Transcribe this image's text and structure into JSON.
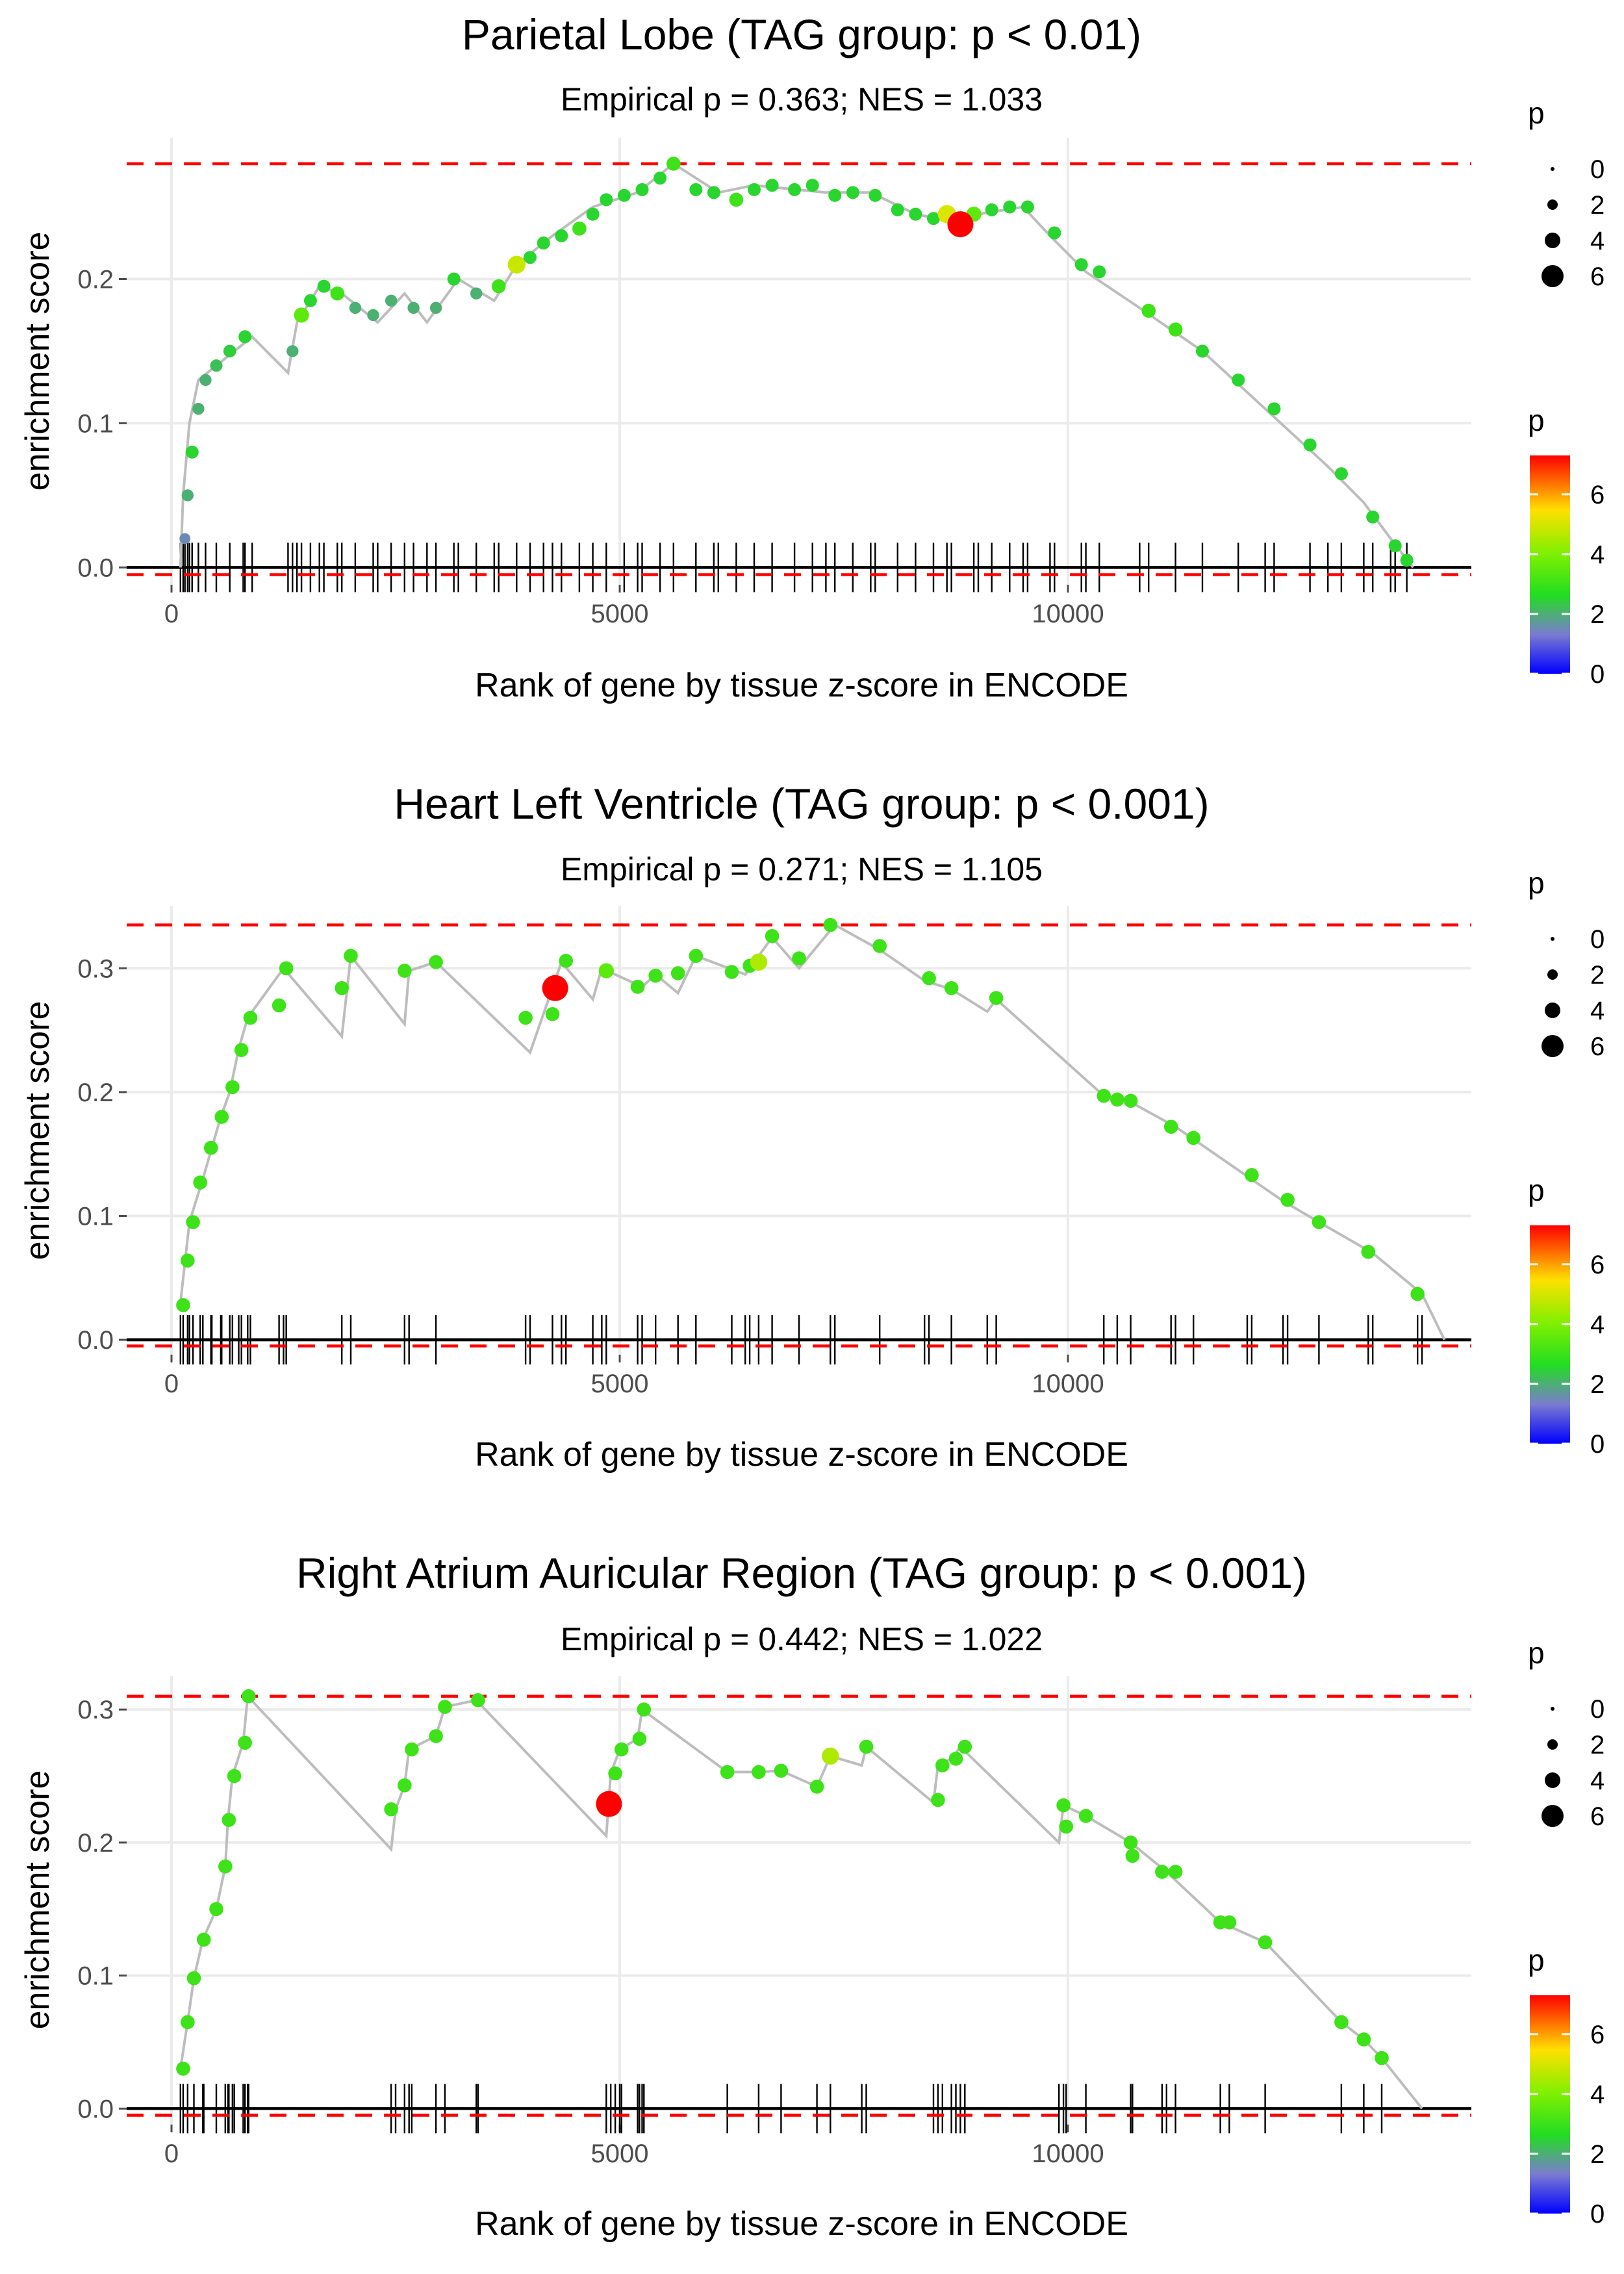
{
  "colors": {
    "background": "#ffffff",
    "grid": "#ebebeb",
    "reference_line": "#ff0000",
    "es_line": "#bdbdbd",
    "axis_zero": "#000000",
    "rug": "#000000",
    "scale_low": "#0000ff",
    "scale_mid_low": "#7b7bd0",
    "scale_mid": "#22dd22",
    "scale_mid_high": "#7ff000",
    "scale_high_mid": "#ffe000",
    "scale_high": "#ff0000"
  },
  "chart_data": [
    {
      "type": "scatter",
      "title": "Parietal Lobe (TAG group: p < 0.01)",
      "subtitle": "Empirical p = 0.363; NES = 1.033",
      "xlabel": "Rank of gene by tissue z-score in ENCODE",
      "ylabel": "enrichment score",
      "xlim": [
        -500,
        14500
      ],
      "ylim": [
        -0.012,
        0.298
      ],
      "xticks": [
        0,
        5000,
        10000
      ],
      "xtick_labels": [
        "0",
        "5000",
        "10000"
      ],
      "yticks": [
        0,
        0.1,
        0.2
      ],
      "ytick_labels": [
        "0.0",
        "0.1",
        "0.2"
      ],
      "max_es": 0.28,
      "min_es": -0.005,
      "highlight": {
        "x": 8800,
        "y": 0.238,
        "p": 7.3
      },
      "anchors": [
        [
          100,
          0
        ],
        [
          130,
          0.05
        ],
        [
          200,
          0.1
        ],
        [
          300,
          0.13
        ],
        [
          500,
          0.14
        ],
        [
          800,
          0.155
        ],
        [
          900,
          0.16
        ],
        [
          1300,
          0.135
        ],
        [
          1400,
          0.17
        ],
        [
          1650,
          0.195
        ],
        [
          1900,
          0.19
        ],
        [
          2300,
          0.17
        ],
        [
          2600,
          0.19
        ],
        [
          2850,
          0.17
        ],
        [
          3200,
          0.2
        ],
        [
          3600,
          0.185
        ],
        [
          3850,
          0.21
        ],
        [
          4250,
          0.23
        ],
        [
          4700,
          0.25
        ],
        [
          5200,
          0.26
        ],
        [
          5600,
          0.28
        ],
        [
          6100,
          0.26
        ],
        [
          6500,
          0.265
        ],
        [
          7300,
          0.26
        ],
        [
          7800,
          0.26
        ],
        [
          8300,
          0.245
        ],
        [
          8700,
          0.24
        ],
        [
          9000,
          0.245
        ],
        [
          9500,
          0.25
        ],
        [
          9800,
          0.23
        ],
        [
          10200,
          0.205
        ],
        [
          10800,
          0.18
        ],
        [
          11500,
          0.15
        ],
        [
          12200,
          0.11
        ],
        [
          12900,
          0.07
        ],
        [
          13300,
          0.045
        ],
        [
          13600,
          0.02
        ],
        [
          13850,
          0
        ]
      ],
      "points": [
        [
          150,
          0.02,
          1.5
        ],
        [
          180,
          0.05,
          2
        ],
        [
          230,
          0.08,
          2.5
        ],
        [
          300,
          0.11,
          2
        ],
        [
          380,
          0.13,
          2
        ],
        [
          500,
          0.14,
          2.2
        ],
        [
          650,
          0.15,
          2.4
        ],
        [
          820,
          0.16,
          2.5
        ],
        [
          1350,
          0.15,
          2
        ],
        [
          1450,
          0.175,
          3.5
        ],
        [
          1550,
          0.185,
          2.5
        ],
        [
          1700,
          0.195,
          2.5
        ],
        [
          1850,
          0.19,
          3
        ],
        [
          2050,
          0.18,
          2
        ],
        [
          2250,
          0.175,
          2
        ],
        [
          2450,
          0.185,
          2
        ],
        [
          2700,
          0.18,
          2
        ],
        [
          2950,
          0.18,
          2
        ],
        [
          3150,
          0.2,
          2.5
        ],
        [
          3400,
          0.19,
          2
        ],
        [
          3650,
          0.195,
          3
        ],
        [
          3850,
          0.21,
          4.8
        ],
        [
          4000,
          0.215,
          2.5
        ],
        [
          4150,
          0.225,
          2.5
        ],
        [
          4350,
          0.23,
          2.5
        ],
        [
          4550,
          0.235,
          3
        ],
        [
          4700,
          0.245,
          2.5
        ],
        [
          4850,
          0.255,
          2.5
        ],
        [
          5050,
          0.258,
          2.5
        ],
        [
          5250,
          0.262,
          2.5
        ],
        [
          5450,
          0.27,
          2.5
        ],
        [
          5600,
          0.28,
          3
        ],
        [
          5850,
          0.262,
          2.5
        ],
        [
          6050,
          0.26,
          2.5
        ],
        [
          6300,
          0.255,
          3
        ],
        [
          6500,
          0.262,
          2.5
        ],
        [
          6700,
          0.265,
          2.5
        ],
        [
          6950,
          0.262,
          2.5
        ],
        [
          7150,
          0.265,
          2.5
        ],
        [
          7400,
          0.258,
          2.5
        ],
        [
          7600,
          0.26,
          2.5
        ],
        [
          7850,
          0.258,
          2.5
        ],
        [
          8100,
          0.248,
          2.5
        ],
        [
          8300,
          0.245,
          2.5
        ],
        [
          8500,
          0.242,
          2.5
        ],
        [
          8650,
          0.245,
          5
        ],
        [
          8950,
          0.245,
          3.5
        ],
        [
          9150,
          0.248,
          2.5
        ],
        [
          9350,
          0.25,
          2.5
        ],
        [
          9550,
          0.25,
          2.5
        ],
        [
          9850,
          0.232,
          2.5
        ],
        [
          10150,
          0.21,
          2.5
        ],
        [
          10350,
          0.205,
          2.5
        ],
        [
          10900,
          0.178,
          3
        ],
        [
          11200,
          0.165,
          3
        ],
        [
          11500,
          0.15,
          2.5
        ],
        [
          11900,
          0.13,
          2.5
        ],
        [
          12300,
          0.11,
          2.5
        ],
        [
          12700,
          0.085,
          2.5
        ],
        [
          13050,
          0.065,
          2.5
        ],
        [
          13400,
          0.035,
          2.5
        ],
        [
          13650,
          0.015,
          2.5
        ],
        [
          13780,
          0.005,
          2.5
        ]
      ]
    },
    {
      "type": "scatter",
      "title": "Heart Left Ventricle (TAG group: p < 0.001)",
      "subtitle": "Empirical p = 0.271; NES = 1.105",
      "xlabel": "Rank of gene by tissue z-score in ENCODE",
      "ylabel": "enrichment score",
      "xlim": [
        -500,
        14500
      ],
      "ylim": [
        -0.012,
        0.35
      ],
      "xticks": [
        0,
        5000,
        10000
      ],
      "xtick_labels": [
        "0",
        "5000",
        "10000"
      ],
      "yticks": [
        0,
        0.1,
        0.2,
        0.3
      ],
      "ytick_labels": [
        "0.0",
        "0.1",
        "0.2",
        "0.3"
      ],
      "max_es": 0.335,
      "min_es": -0.005,
      "highlight": {
        "x": 4280,
        "y": 0.284,
        "p": 7.3
      },
      "anchors": [
        [
          100,
          0.03
        ],
        [
          200,
          0.095
        ],
        [
          350,
          0.13
        ],
        [
          450,
          0.155
        ],
        [
          550,
          0.18
        ],
        [
          650,
          0.2
        ],
        [
          750,
          0.235
        ],
        [
          850,
          0.26
        ],
        [
          1250,
          0.3
        ],
        [
          1900,
          0.245
        ],
        [
          2000,
          0.31
        ],
        [
          2600,
          0.255
        ],
        [
          2650,
          0.298
        ],
        [
          2950,
          0.305
        ],
        [
          4000,
          0.232
        ],
        [
          4350,
          0.305
        ],
        [
          4700,
          0.275
        ],
        [
          4800,
          0.3
        ],
        [
          5250,
          0.285
        ],
        [
          5400,
          0.295
        ],
        [
          5650,
          0.28
        ],
        [
          5850,
          0.31
        ],
        [
          6400,
          0.295
        ],
        [
          6700,
          0.325
        ],
        [
          7000,
          0.3
        ],
        [
          7400,
          0.335
        ],
        [
          7900,
          0.315
        ],
        [
          8400,
          0.29
        ],
        [
          8700,
          0.283
        ],
        [
          9100,
          0.265
        ],
        [
          9200,
          0.275
        ],
        [
          10400,
          0.197
        ],
        [
          10700,
          0.192
        ],
        [
          11200,
          0.172
        ],
        [
          11400,
          0.162
        ],
        [
          12000,
          0.132
        ],
        [
          12400,
          0.112
        ],
        [
          12800,
          0.095
        ],
        [
          13400,
          0.07
        ],
        [
          13950,
          0.037
        ],
        [
          14200,
          0
        ]
      ],
      "points": [
        [
          130,
          0.028,
          3
        ],
        [
          180,
          0.064,
          3
        ],
        [
          240,
          0.095,
          3
        ],
        [
          320,
          0.127,
          3
        ],
        [
          440,
          0.155,
          3
        ],
        [
          560,
          0.18,
          3
        ],
        [
          680,
          0.204,
          3
        ],
        [
          780,
          0.234,
          3
        ],
        [
          880,
          0.26,
          3
        ],
        [
          1200,
          0.27,
          3
        ],
        [
          1280,
          0.3,
          3
        ],
        [
          1900,
          0.284,
          3
        ],
        [
          2000,
          0.31,
          3
        ],
        [
          2600,
          0.298,
          3
        ],
        [
          2950,
          0.305,
          3
        ],
        [
          3950,
          0.26,
          3
        ],
        [
          4250,
          0.263,
          3
        ],
        [
          4400,
          0.306,
          3
        ],
        [
          4850,
          0.298,
          3.5
        ],
        [
          5200,
          0.285,
          3
        ],
        [
          5400,
          0.294,
          3
        ],
        [
          5650,
          0.296,
          3
        ],
        [
          5850,
          0.31,
          3
        ],
        [
          6250,
          0.297,
          3
        ],
        [
          6450,
          0.302,
          3
        ],
        [
          6550,
          0.305,
          4.5
        ],
        [
          6700,
          0.326,
          3
        ],
        [
          7000,
          0.308,
          3
        ],
        [
          7350,
          0.335,
          3
        ],
        [
          7900,
          0.318,
          3
        ],
        [
          8450,
          0.292,
          3
        ],
        [
          8700,
          0.284,
          3
        ],
        [
          9200,
          0.276,
          3
        ],
        [
          10400,
          0.197,
          3
        ],
        [
          10550,
          0.194,
          3
        ],
        [
          10700,
          0.193,
          3
        ],
        [
          11150,
          0.172,
          3
        ],
        [
          11400,
          0.163,
          3
        ],
        [
          12050,
          0.133,
          3
        ],
        [
          12450,
          0.113,
          3
        ],
        [
          12800,
          0.095,
          3
        ],
        [
          13350,
          0.071,
          3
        ],
        [
          13900,
          0.037,
          3
        ]
      ]
    },
    {
      "type": "scatter",
      "title": "Right Atrium Auricular Region (TAG group: p < 0.001)",
      "subtitle": "Empirical p = 0.442; NES = 1.022",
      "xlabel": "Rank of gene by tissue z-score in ENCODE",
      "ylabel": "enrichment score",
      "xlim": [
        -500,
        14500
      ],
      "ylim": [
        -0.012,
        0.325
      ],
      "xticks": [
        0,
        5000,
        10000
      ],
      "xtick_labels": [
        "0",
        "5000",
        "10000"
      ],
      "yticks": [
        0,
        0.1,
        0.2,
        0.3
      ],
      "ytick_labels": [
        "0.0",
        "0.1",
        "0.2",
        "0.3"
      ],
      "max_es": 0.31,
      "min_es": -0.005,
      "highlight": {
        "x": 4880,
        "y": 0.229,
        "p": 7.3
      },
      "anchors": [
        [
          100,
          0.03
        ],
        [
          180,
          0.065
        ],
        [
          250,
          0.098
        ],
        [
          350,
          0.127
        ],
        [
          500,
          0.15
        ],
        [
          600,
          0.182
        ],
        [
          630,
          0.217
        ],
        [
          680,
          0.25
        ],
        [
          800,
          0.275
        ],
        [
          850,
          0.31
        ],
        [
          2450,
          0.195
        ],
        [
          2500,
          0.225
        ],
        [
          2600,
          0.243
        ],
        [
          2650,
          0.27
        ],
        [
          2950,
          0.28
        ],
        [
          3050,
          0.302
        ],
        [
          3400,
          0.307
        ],
        [
          4850,
          0.205
        ],
        [
          4900,
          0.252
        ],
        [
          5000,
          0.27
        ],
        [
          5200,
          0.278
        ],
        [
          5250,
          0.3
        ],
        [
          6200,
          0.253
        ],
        [
          6550,
          0.253
        ],
        [
          6800,
          0.254
        ],
        [
          7200,
          0.242
        ],
        [
          7350,
          0.265
        ],
        [
          7700,
          0.258
        ],
        [
          7750,
          0.272
        ],
        [
          8500,
          0.23
        ],
        [
          8550,
          0.258
        ],
        [
          8700,
          0.263
        ],
        [
          8800,
          0.272
        ],
        [
          9900,
          0.2
        ],
        [
          9950,
          0.228
        ],
        [
          10200,
          0.22
        ],
        [
          10700,
          0.2
        ],
        [
          11100,
          0.178
        ],
        [
          11700,
          0.14
        ],
        [
          12200,
          0.125
        ],
        [
          13050,
          0.065
        ],
        [
          13300,
          0.052
        ],
        [
          13500,
          0.038
        ],
        [
          13950,
          0
        ]
      ],
      "points": [
        [
          130,
          0.03,
          3
        ],
        [
          180,
          0.065,
          3
        ],
        [
          250,
          0.098,
          3
        ],
        [
          360,
          0.127,
          3
        ],
        [
          500,
          0.15,
          3
        ],
        [
          600,
          0.182,
          3
        ],
        [
          640,
          0.217,
          3
        ],
        [
          700,
          0.25,
          3
        ],
        [
          820,
          0.275,
          3
        ],
        [
          860,
          0.31,
          3
        ],
        [
          2450,
          0.225,
          3
        ],
        [
          2600,
          0.243,
          3
        ],
        [
          2680,
          0.27,
          3
        ],
        [
          2950,
          0.28,
          3
        ],
        [
          3050,
          0.302,
          3
        ],
        [
          3420,
          0.307,
          3
        ],
        [
          4950,
          0.252,
          3
        ],
        [
          5020,
          0.27,
          3
        ],
        [
          5220,
          0.278,
          3
        ],
        [
          5270,
          0.3,
          3
        ],
        [
          6200,
          0.253,
          3
        ],
        [
          6550,
          0.253,
          3
        ],
        [
          6800,
          0.254,
          3
        ],
        [
          7200,
          0.242,
          3
        ],
        [
          7350,
          0.265,
          4.5
        ],
        [
          7750,
          0.272,
          3
        ],
        [
          8550,
          0.232,
          3
        ],
        [
          8600,
          0.258,
          3
        ],
        [
          8750,
          0.263,
          3
        ],
        [
          8850,
          0.272,
          3
        ],
        [
          9950,
          0.228,
          3
        ],
        [
          9980,
          0.212,
          3
        ],
        [
          10200,
          0.22,
          3
        ],
        [
          10700,
          0.2,
          3
        ],
        [
          10720,
          0.19,
          3
        ],
        [
          11050,
          0.178,
          3
        ],
        [
          11200,
          0.178,
          3
        ],
        [
          11700,
          0.14,
          3
        ],
        [
          11800,
          0.14,
          3
        ],
        [
          12200,
          0.125,
          3
        ],
        [
          13050,
          0.065,
          3
        ],
        [
          13300,
          0.052,
          3
        ],
        [
          13500,
          0.038,
          3
        ]
      ]
    }
  ],
  "legends": [
    {
      "size_title": "p",
      "size_labels": [
        "0",
        "2",
        "4",
        "6"
      ],
      "color_title": "p",
      "color_labels": [
        "6",
        "4",
        "2",
        "0"
      ]
    },
    {
      "size_title": "p",
      "size_labels": [
        "0",
        "2",
        "4",
        "6"
      ],
      "color_title": "p",
      "color_labels": [
        "6",
        "4",
        "2",
        "0"
      ]
    },
    {
      "size_title": "p",
      "size_labels": [
        "0",
        "2",
        "4",
        "6"
      ],
      "color_title": "p",
      "color_labels": [
        "6",
        "4",
        "2",
        "0"
      ]
    }
  ]
}
